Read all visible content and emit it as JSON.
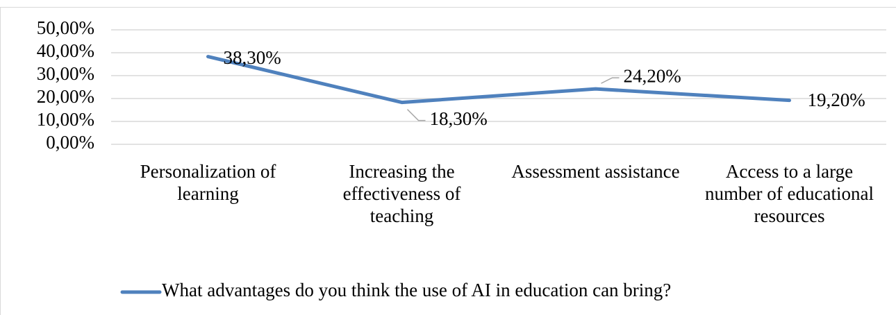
{
  "chart_data": {
    "type": "line",
    "categories": [
      "Personalization of learning",
      "Increasing the effectiveness of teaching",
      "Assessment assistance",
      "Access to a large number of educational resources"
    ],
    "series": [
      {
        "name": "What advantages do you think the use of AI in education can bring?",
        "color": "#4f81bd",
        "values": [
          38.3,
          18.3,
          24.2,
          19.2
        ],
        "value_labels": [
          "38,30%",
          "18,30%",
          "24,20%",
          "19,20%"
        ]
      }
    ],
    "ylim": [
      0,
      50
    ],
    "yticks": [
      {
        "value": 0,
        "label": "0,00%"
      },
      {
        "value": 10,
        "label": "10,00%"
      },
      {
        "value": 20,
        "label": "20,00%"
      },
      {
        "value": 30,
        "label": "30,00%"
      },
      {
        "value": 40,
        "label": "40,00%"
      },
      {
        "value": 50,
        "label": "50,00%"
      }
    ],
    "grid": true,
    "legend": "bottom"
  }
}
